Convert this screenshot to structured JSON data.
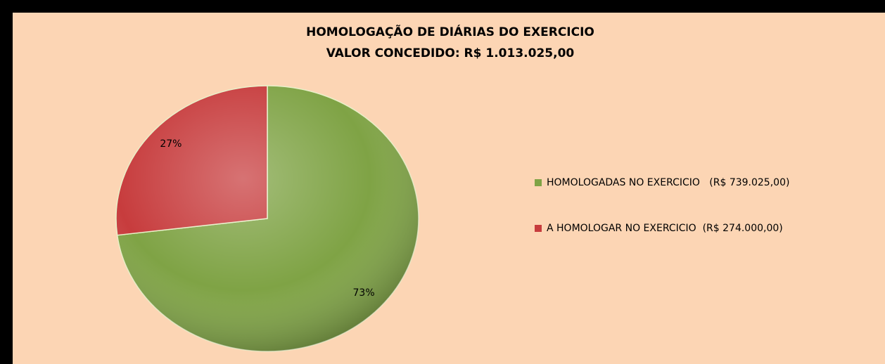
{
  "chart_data": {
    "type": "pie",
    "title": [
      "HOMOLOGAÇÃO DE DIÁRIAS DO EXERCICIO",
      "VALOR CONCEDIDO: R$ 1.013.025,00"
    ],
    "categories": [
      "HOMOLOGADAS NO EXERCICIO   (R$ 739.025,00)",
      "A HOMOLOGAR NO EXERCICIO  (R$ 274.000,00)"
    ],
    "values": [
      73,
      27
    ],
    "value_labels": [
      "73%",
      "27%"
    ],
    "colors": [
      "#7fa345",
      "#c73c3d"
    ],
    "legend": "right"
  }
}
